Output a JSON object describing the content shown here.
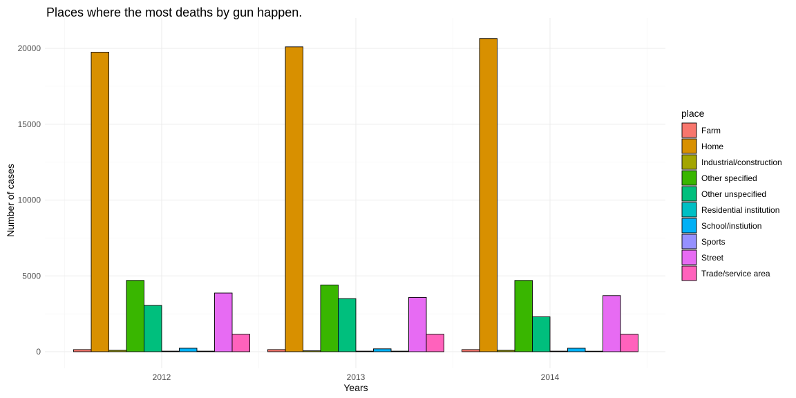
{
  "chart_data": {
    "type": "bar",
    "title": "Places where the most deaths by gun happen.",
    "xlabel": "Years",
    "ylabel": "Number of cases",
    "categories": [
      "2012",
      "2013",
      "2014"
    ],
    "ylim": [
      0,
      22000
    ],
    "yticks": [
      0,
      5000,
      10000,
      15000,
      20000
    ],
    "grid": true,
    "legend": {
      "title": "place",
      "position": "right"
    },
    "series": [
      {
        "name": "Farm",
        "color": "#F8766D",
        "values": [
          140,
          140,
          140
        ]
      },
      {
        "name": "Home",
        "color": "#D89000",
        "values": [
          19750,
          20100,
          20650
        ]
      },
      {
        "name": "Industrial/construction",
        "color": "#A3A500",
        "values": [
          90,
          60,
          90
        ]
      },
      {
        "name": "Other specified",
        "color": "#39B600",
        "values": [
          4700,
          4400,
          4700
        ]
      },
      {
        "name": "Other unspecified",
        "color": "#00BF7D",
        "values": [
          3050,
          3500,
          2300
        ]
      },
      {
        "name": "Residential institution",
        "color": "#00BFC4",
        "values": [
          40,
          40,
          40
        ]
      },
      {
        "name": "School/instiution",
        "color": "#00B0F6",
        "values": [
          230,
          190,
          230
        ]
      },
      {
        "name": "Sports",
        "color": "#9590FF",
        "values": [
          40,
          40,
          20
        ]
      },
      {
        "name": "Street",
        "color": "#E76BF3",
        "values": [
          3870,
          3580,
          3700
        ]
      },
      {
        "name": "Trade/service area",
        "color": "#FF62BC",
        "values": [
          1150,
          1150,
          1150
        ]
      }
    ]
  }
}
